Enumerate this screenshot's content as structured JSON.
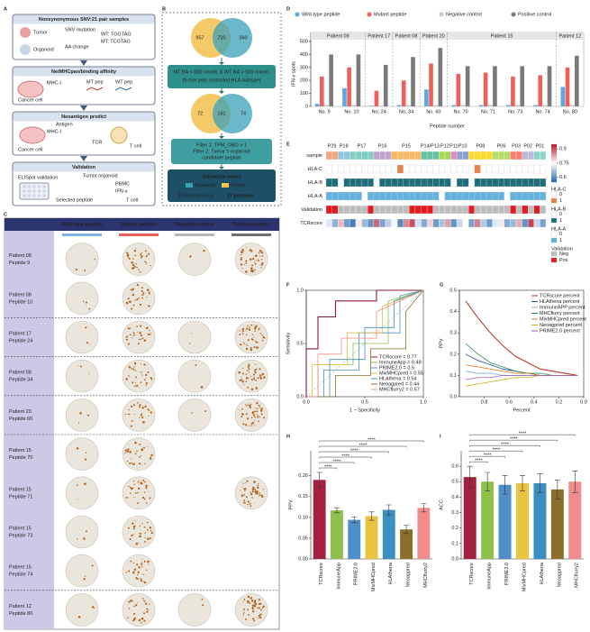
{
  "figure": {
    "panel_labels": [
      "A",
      "B",
      "C",
      "D",
      "E",
      "F",
      "G",
      "H",
      "I"
    ]
  },
  "panel_a": {
    "title": "Nonsynonymous SNV:21 pair samples",
    "tumor": "Tumor",
    "organoid": "Organoid",
    "snv": "SNV mutation",
    "aa": "AA change",
    "wt": "WT: TGGTAG",
    "mt": "MT: TCGTAG",
    "step1": "NetMHCpan/binding affinity",
    "mhc": "MHC-I",
    "mtpep": "MT pep",
    "wtpep": "WT pep",
    "cancer": "Cancer cell",
    "step2": "Neoantigen predict",
    "antigen": "Antigen",
    "mhc2": "MHC-I",
    "cancer2": "Cancer cell",
    "tcr": "TCR",
    "tcell": "T cell",
    "step3": "Validation",
    "elispot": "ELISpot validation",
    "tumor_org": "Tumor organoid",
    "pbmc": "PBMC",
    "ifn": "IFN-γ",
    "selected": "Selected peptide",
    "tcell2": "T cell"
  },
  "panel_b": {
    "venn1": {
      "left": "957",
      "mid": "720",
      "right": "360"
    },
    "filter1": [
      "MT BA < 500 nmol/L & WT BA > 500 nmol/L",
      "(9-mer pep, restricted HLA subtype)"
    ],
    "venn2": {
      "left": "72",
      "mid": "161",
      "right": "74"
    },
    "filter2": [
      "Filter 1: TPM_OBO > 1",
      "Filter 2: Tumor = organoid",
      "candidate peptide"
    ],
    "assay": "Validation assay",
    "legend": [
      "Organoid",
      "Tumor"
    ],
    "result": [
      "TCRscore > 0.6",
      "37 peptides"
    ]
  },
  "panel_c": {
    "headers": [
      "Wild-type peptide",
      "Mutant peptide",
      "Negative control",
      "Positive control"
    ],
    "rows": [
      [
        "Patient 08",
        "Peptide 9"
      ],
      [
        "Patient 08",
        "Peptide 10"
      ],
      [
        "Patient 17",
        "Peptide 24"
      ],
      [
        "Patient 08",
        "Peptide 34"
      ],
      [
        "Patient 20",
        "Peptide 60"
      ],
      [
        "Patient 15",
        "Peptide 70"
      ],
      [
        "Patient 15",
        "Peptide 71"
      ],
      [
        "Patient 15",
        "Peptide 73"
      ],
      [
        "Patient 15",
        "Peptide 74"
      ],
      [
        "Patient 12",
        "Peptide 80"
      ]
    ]
  },
  "chart_data": [
    {
      "type": "grouped_bar",
      "y_label": "IFN-γ spots",
      "x_label": "Peptide number",
      "groups": [
        {
          "label": "Patient 08",
          "categories": [
            "No. 9",
            "No. 10"
          ]
        },
        {
          "label": "Patient 17",
          "categories": [
            "No. 24"
          ]
        },
        {
          "label": "Patient 08",
          "categories": [
            "No. 34"
          ]
        },
        {
          "label": "Patient 20",
          "categories": [
            "No. 60"
          ]
        },
        {
          "label": "Patient 15",
          "categories": [
            "No. 70",
            "No. 71",
            "No. 73",
            "No. 74"
          ]
        },
        {
          "label": "Patient 12",
          "categories": [
            "No. 80"
          ]
        }
      ],
      "series": [
        {
          "name": "Wild-type peptide",
          "color": "#5aa9e6",
          "values": [
            20,
            140,
            5,
            10,
            130,
            10,
            10,
            10,
            10,
            150
          ]
        },
        {
          "name": "Mutant peptide",
          "color": "#f0605a",
          "values": [
            230,
            300,
            120,
            200,
            330,
            250,
            260,
            230,
            240,
            300
          ]
        },
        {
          "name": "Negative control",
          "color": "#c8c8c8",
          "values": [
            10,
            10,
            5,
            10,
            10,
            10,
            10,
            10,
            10,
            10
          ]
        },
        {
          "name": "Positive control",
          "color": "#7a7a7a",
          "values": [
            400,
            400,
            320,
            380,
            450,
            310,
            310,
            310,
            310,
            390
          ]
        }
      ],
      "ylim": [
        0,
        500
      ],
      "yticks": [
        0,
        100,
        200,
        300,
        400,
        500
      ]
    },
    {
      "type": "heatmap",
      "sample_label": "sample",
      "sample": [
        "P29",
        "P29",
        "P18",
        "P18",
        "P17",
        "P17",
        "P17",
        "P17",
        "P16",
        "P16",
        "P16",
        "P15",
        "P15",
        "P15",
        "P15",
        "P15",
        "P14/P13",
        "P14/P13",
        "P14/P13",
        "P12",
        "P12",
        "P11",
        "P10",
        "P10",
        "P08",
        "P08",
        "P08",
        "P08",
        "P06",
        "P06",
        "P06",
        "P03",
        "P03",
        "P02",
        "P02",
        "P01",
        "P01"
      ],
      "rows": [
        {
          "name": "HLA-C",
          "color": "#e8834a",
          "values": [
            0,
            0,
            0,
            0,
            0,
            0,
            0,
            0,
            0,
            0,
            0,
            0,
            1,
            0,
            0,
            0,
            0,
            0,
            0,
            0,
            0,
            0,
            0,
            0,
            0,
            1,
            0,
            0,
            0,
            0,
            0,
            0,
            0,
            0,
            0,
            0,
            0
          ]
        },
        {
          "name": "HLA-B",
          "color": "#1f6f7a",
          "values": [
            1,
            1,
            0,
            1,
            1,
            1,
            1,
            1,
            0,
            1,
            1,
            1,
            1,
            1,
            1,
            1,
            1,
            1,
            1,
            1,
            1,
            0,
            1,
            1,
            0,
            1,
            1,
            1,
            1,
            1,
            1,
            1,
            1,
            1,
            1,
            1,
            1
          ]
        },
        {
          "name": "HLA-A",
          "color": "#63b3df",
          "values": [
            1,
            1,
            1,
            1,
            1,
            1,
            0,
            1,
            1,
            1,
            1,
            1,
            1,
            1,
            1,
            1,
            1,
            1,
            1,
            0,
            1,
            1,
            1,
            1,
            1,
            1,
            1,
            1,
            1,
            1,
            0,
            1,
            1,
            1,
            1,
            1,
            1
          ]
        },
        {
          "name": "Validation",
          "colors": [
            "#bdbdbd",
            "#e41a1c"
          ],
          "labels": [
            "Neg",
            "Pos"
          ],
          "values": [
            1,
            1,
            0,
            0,
            0,
            0,
            0,
            1,
            0,
            0,
            0,
            0,
            0,
            0,
            1,
            1,
            1,
            1,
            0,
            0,
            0,
            0,
            0,
            0,
            1,
            0,
            0,
            0,
            0,
            0,
            0,
            1,
            0,
            1,
            0,
            1,
            0
          ]
        },
        {
          "name": "TCRscore",
          "colors": [
            "#2166ac",
            "#ffffff",
            "#b2182b"
          ],
          "values": [
            0.72,
            0.65,
            0.81,
            0.62,
            0.58,
            0.77,
            0.66,
            0.61,
            0.88,
            0.63,
            0.69,
            0.74,
            0.6,
            0.85,
            0.9,
            0.71,
            0.64,
            0.79,
            0.62,
            0.67,
            0.83,
            0.61,
            0.7,
            0.75,
            0.63,
            0.86,
            0.68,
            0.62,
            0.72,
            0.77,
            0.64,
            0.66,
            0.82,
            0.61,
            0.91,
            0.7,
            0.63
          ]
        }
      ],
      "levels": [
        0,
        1
      ],
      "colorbar": {
        "lim": [
          0.55,
          0.95
        ],
        "ticks": [
          0.9,
          0.75,
          0.6
        ]
      }
    },
    {
      "type": "line",
      "x_label": "1 − Specificity",
      "y_label": "Sensitivity",
      "series": [
        {
          "name": "TCRscore = 0.77",
          "color": "#8b1a3a",
          "x": [
            0,
            0,
            0.1,
            0.1,
            0.25,
            0.25,
            0.6,
            0.6,
            1
          ],
          "y": [
            0,
            0.45,
            0.45,
            0.75,
            0.75,
            0.9,
            0.9,
            1,
            1
          ]
        },
        {
          "name": "ImmuneApp = 0.48",
          "color": "#8fbf4c",
          "x": [
            0,
            0.1,
            0.1,
            0.4,
            0.4,
            0.7,
            0.7,
            1
          ],
          "y": [
            0,
            0,
            0.3,
            0.3,
            0.5,
            0.5,
            0.9,
            1
          ]
        },
        {
          "name": "PRIME2.0 = 0.5",
          "color": "#4e8fc9",
          "x": [
            0,
            0.15,
            0.15,
            0.45,
            0.45,
            0.8,
            0.8,
            1
          ],
          "y": [
            0,
            0,
            0.25,
            0.25,
            0.6,
            0.6,
            0.95,
            1
          ]
        },
        {
          "name": "MixMHCpred = 0.55",
          "color": "#e0c040",
          "x": [
            0,
            0.05,
            0.05,
            0.35,
            0.35,
            0.65,
            0.65,
            1
          ],
          "y": [
            0,
            0,
            0.3,
            0.3,
            0.6,
            0.6,
            0.85,
            1
          ]
        },
        {
          "name": "HLAthena = 0.54",
          "color": "#3a8fc0",
          "x": [
            0,
            0.2,
            0.2,
            0.5,
            0.5,
            0.75,
            0.75,
            1
          ],
          "y": [
            0,
            0,
            0.35,
            0.35,
            0.65,
            0.65,
            0.9,
            1
          ]
        },
        {
          "name": "Neoagpred = 0.44",
          "color": "#8b6e2a",
          "x": [
            0,
            0.25,
            0.25,
            0.55,
            0.55,
            0.85,
            0.85,
            1
          ],
          "y": [
            0,
            0,
            0.2,
            0.2,
            0.45,
            0.45,
            0.8,
            1
          ]
        },
        {
          "name": "MHCflurry2 = 0.57",
          "color": "#f08c8c",
          "x": [
            0,
            0.1,
            0.1,
            0.3,
            0.3,
            0.6,
            0.6,
            1
          ],
          "y": [
            0,
            0,
            0.4,
            0.4,
            0.55,
            0.55,
            0.8,
            1
          ]
        }
      ],
      "xlim": [
        0,
        1
      ],
      "ylim": [
        0,
        1
      ],
      "xticks": [
        {
          "value": 0,
          "label": "0.0"
        },
        0.5,
        {
          "value": 1,
          "label": "1.0"
        }
      ],
      "yticks": [
        {
          "value": 0,
          "label": "0.0"
        },
        0.5,
        {
          "value": 1,
          "label": "1.0"
        }
      ]
    },
    {
      "type": "line",
      "x_label": "Percent",
      "y_label": "PPV",
      "x": [
        0.95,
        0.85,
        0.75,
        0.65,
        0.55,
        0.45,
        0.35,
        0.25,
        0.15,
        0.05
      ],
      "series": [
        {
          "name": "TCRscore percent",
          "color": "#c0392b",
          "values": [
            0.45,
            0.37,
            0.3,
            0.24,
            0.19,
            0.16,
            0.13,
            0.12,
            0.11,
            0.1
          ]
        },
        {
          "name": "HLAthena percent",
          "color": "#1f4e9a",
          "values": [
            0.2,
            0.17,
            0.15,
            0.13,
            0.12,
            0.11,
            0.1,
            0.1,
            0.1,
            0.1
          ]
        },
        {
          "name": "ImmuneAPP percent",
          "color": "#7fb3d5",
          "values": [
            0.12,
            0.11,
            0.11,
            0.1,
            0.1,
            0.1,
            0.1,
            0.1,
            0.1,
            0.1
          ]
        },
        {
          "name": "MHCflurry percent",
          "color": "#2e8b57",
          "values": [
            0.25,
            0.2,
            0.16,
            0.14,
            0.12,
            0.11,
            0.11,
            0.1,
            0.1,
            0.1
          ]
        },
        {
          "name": "MixMHCpred percent",
          "color": "#e67e22",
          "values": [
            0.15,
            0.14,
            0.13,
            0.12,
            0.11,
            0.11,
            0.1,
            0.1,
            0.1,
            0.1
          ]
        },
        {
          "name": "Neoagpred percent",
          "color": "#d4ac0d",
          "values": [
            0.05,
            0.06,
            0.07,
            0.08,
            0.09,
            0.09,
            0.1,
            0.1,
            0.1,
            0.1
          ]
        },
        {
          "name": "PRIME2.0 percent",
          "color": "#9b59b6",
          "values": [
            0.08,
            0.09,
            0.09,
            0.1,
            0.1,
            0.1,
            0.1,
            0.1,
            0.1,
            0.1
          ]
        }
      ],
      "xlim": [
        1,
        0
      ],
      "ylim": [
        0,
        0.5
      ],
      "xticks": [
        0.8,
        0.6,
        0.4,
        0.2,
        {
          "value": 0,
          "label": "0.0"
        }
      ],
      "yticks": [
        {
          "value": 0,
          "label": "0.0"
        },
        0.1,
        0.2,
        0.3,
        0.4,
        0.5
      ]
    },
    {
      "type": "bar",
      "y_label": "PPV",
      "categories": [
        "TCRscore",
        "ImmuneApp",
        "PRIME2.0",
        "MixMHCpred",
        "HLAthena",
        "Neoagpred",
        "MHCflurry2"
      ],
      "colors": [
        "#a3203f",
        "#8fbf4c",
        "#4e8fc9",
        "#e8c440",
        "#3a8fc0",
        "#8b6e2a",
        "#f08c8c"
      ],
      "values": [
        0.19,
        0.117,
        0.094,
        0.103,
        0.118,
        0.071,
        0.123
      ],
      "errors": [
        0.018,
        0.006,
        0.007,
        0.01,
        0.012,
        0.01,
        0.01
      ],
      "significance": [
        "****",
        "****",
        "****",
        "****",
        "****",
        "****"
      ],
      "ylim": [
        0,
        0.26
      ],
      "yticks": [
        {
          "value": 0,
          "label": "0.00"
        },
        0.05,
        {
          "value": 0.1,
          "label": "0.10"
        },
        0.15,
        {
          "value": 0.2,
          "label": "0.20"
        }
      ]
    },
    {
      "type": "bar",
      "y_label": "ACC",
      "categories": [
        "TCRscore",
        "ImmuneApp",
        "PRIME2.0",
        "MixMHCpred",
        "HLAthena",
        "Neoagpred",
        "MHCflurry2"
      ],
      "colors": [
        "#a3203f",
        "#8fbf4c",
        "#4e8fc9",
        "#e8c440",
        "#3a8fc0",
        "#8b6e2a",
        "#f08c8c"
      ],
      "values": [
        0.53,
        0.5,
        0.48,
        0.49,
        0.49,
        0.45,
        0.5
      ],
      "errors": [
        0.07,
        0.06,
        0.06,
        0.05,
        0.06,
        0.06,
        0.07
      ],
      "significance": [
        "****",
        "****",
        "****",
        "****",
        "****",
        "****"
      ],
      "ylim": [
        0,
        0.7
      ],
      "yticks": [
        {
          "value": 0,
          "label": "0.0"
        },
        0.1,
        0.2,
        0.3,
        0.4,
        0.5,
        0.6
      ]
    }
  ]
}
